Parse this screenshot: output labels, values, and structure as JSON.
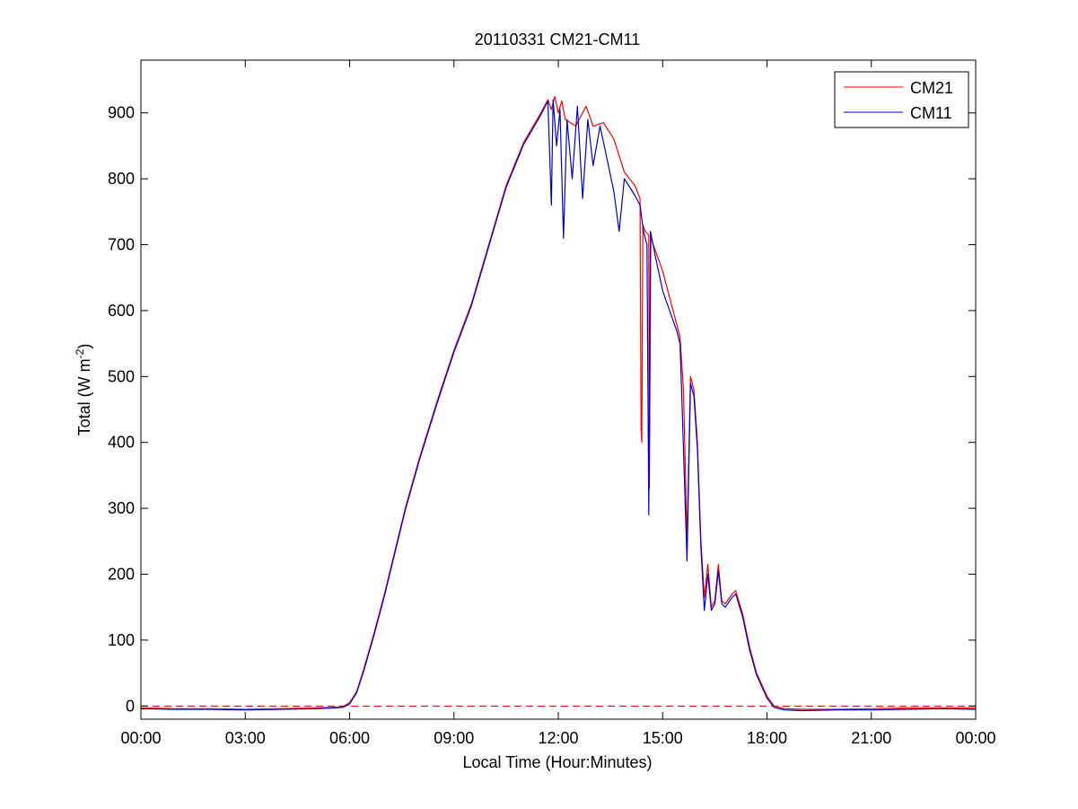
{
  "chart_data": {
    "type": "line",
    "title": "20110331 CM21-CM11",
    "xlabel": "Local Time (Hour:Minutes)",
    "ylabel": {
      "prefix": "Total (W m",
      "sup": "-2",
      "suffix": ")"
    },
    "xlim": [
      0,
      24
    ],
    "ylim": [
      -20,
      980
    ],
    "x_ticks": [
      {
        "value": 0,
        "label": "00:00"
      },
      {
        "value": 3,
        "label": "03:00"
      },
      {
        "value": 6,
        "label": "06:00"
      },
      {
        "value": 9,
        "label": "09:00"
      },
      {
        "value": 12,
        "label": "12:00"
      },
      {
        "value": 15,
        "label": "15:00"
      },
      {
        "value": 18,
        "label": "18:00"
      },
      {
        "value": 21,
        "label": "21:00"
      },
      {
        "value": 24,
        "label": "00:00"
      }
    ],
    "y_ticks": [
      {
        "value": 0,
        "label": "0"
      },
      {
        "value": 100,
        "label": "100"
      },
      {
        "value": 200,
        "label": "200"
      },
      {
        "value": 300,
        "label": "300"
      },
      {
        "value": 400,
        "label": "400"
      },
      {
        "value": 500,
        "label": "500"
      },
      {
        "value": 600,
        "label": "600"
      },
      {
        "value": 700,
        "label": "700"
      },
      {
        "value": 800,
        "label": "800"
      },
      {
        "value": 900,
        "label": "900"
      }
    ],
    "grid": false,
    "legend_position": "top-right",
    "reference_line": {
      "y": 0,
      "color": "#c00000",
      "style": "dashed"
    },
    "series": [
      {
        "name": "CM21",
        "color": "#ff0000",
        "points": [
          [
            0.0,
            -3
          ],
          [
            1.0,
            -4
          ],
          [
            2.0,
            -4
          ],
          [
            3.0,
            -5
          ],
          [
            4.0,
            -4
          ],
          [
            5.0,
            -3
          ],
          [
            5.5,
            -2
          ],
          [
            5.8,
            -1
          ],
          [
            6.0,
            5
          ],
          [
            6.2,
            22
          ],
          [
            6.4,
            55
          ],
          [
            6.7,
            110
          ],
          [
            7.0,
            170
          ],
          [
            7.3,
            235
          ],
          [
            7.6,
            300
          ],
          [
            8.0,
            375
          ],
          [
            8.5,
            460
          ],
          [
            9.0,
            540
          ],
          [
            9.5,
            610
          ],
          [
            10.0,
            700
          ],
          [
            10.5,
            790
          ],
          [
            11.0,
            855
          ],
          [
            11.5,
            900
          ],
          [
            11.7,
            920
          ],
          [
            11.8,
            905
          ],
          [
            11.9,
            925
          ],
          [
            12.0,
            900
          ],
          [
            12.1,
            918
          ],
          [
            12.2,
            890
          ],
          [
            12.5,
            880
          ],
          [
            12.8,
            910
          ],
          [
            13.0,
            880
          ],
          [
            13.3,
            885
          ],
          [
            13.6,
            860
          ],
          [
            13.9,
            810
          ],
          [
            14.2,
            790
          ],
          [
            14.35,
            770
          ],
          [
            14.38,
            420
          ],
          [
            14.4,
            400
          ],
          [
            14.43,
            730
          ],
          [
            14.5,
            720
          ],
          [
            14.6,
            715
          ],
          [
            14.62,
            330
          ],
          [
            14.66,
            710
          ],
          [
            14.8,
            690
          ],
          [
            15.0,
            660
          ],
          [
            15.2,
            620
          ],
          [
            15.4,
            580
          ],
          [
            15.5,
            560
          ],
          [
            15.6,
            480
          ],
          [
            15.7,
            250
          ],
          [
            15.8,
            500
          ],
          [
            15.9,
            480
          ],
          [
            16.0,
            400
          ],
          [
            16.1,
            250
          ],
          [
            16.2,
            165
          ],
          [
            16.3,
            215
          ],
          [
            16.4,
            150
          ],
          [
            16.5,
            160
          ],
          [
            16.6,
            215
          ],
          [
            16.7,
            160
          ],
          [
            16.8,
            155
          ],
          [
            17.0,
            170
          ],
          [
            17.1,
            175
          ],
          [
            17.3,
            140
          ],
          [
            17.5,
            90
          ],
          [
            17.7,
            50
          ],
          [
            18.0,
            15
          ],
          [
            18.2,
            0
          ],
          [
            18.5,
            -4
          ],
          [
            19.0,
            -5
          ],
          [
            20.0,
            -5
          ],
          [
            21.0,
            -4
          ],
          [
            22.0,
            -3
          ],
          [
            23.0,
            -3
          ],
          [
            24.0,
            -3
          ]
        ]
      },
      {
        "name": "CM11",
        "color": "#0000cc",
        "points": [
          [
            0.0,
            -4
          ],
          [
            1.0,
            -5
          ],
          [
            2.0,
            -5
          ],
          [
            3.0,
            -6
          ],
          [
            4.0,
            -5
          ],
          [
            5.0,
            -4
          ],
          [
            5.5,
            -3
          ],
          [
            5.8,
            -2
          ],
          [
            6.0,
            3
          ],
          [
            6.2,
            20
          ],
          [
            6.4,
            52
          ],
          [
            6.7,
            107
          ],
          [
            7.0,
            167
          ],
          [
            7.3,
            232
          ],
          [
            7.6,
            297
          ],
          [
            8.0,
            372
          ],
          [
            8.5,
            457
          ],
          [
            9.0,
            537
          ],
          [
            9.5,
            607
          ],
          [
            10.0,
            697
          ],
          [
            10.5,
            787
          ],
          [
            11.0,
            852
          ],
          [
            11.5,
            897
          ],
          [
            11.7,
            918
          ],
          [
            11.8,
            760
          ],
          [
            11.85,
            920
          ],
          [
            11.95,
            850
          ],
          [
            12.05,
            905
          ],
          [
            12.15,
            710
          ],
          [
            12.25,
            890
          ],
          [
            12.4,
            800
          ],
          [
            12.55,
            910
          ],
          [
            12.7,
            770
          ],
          [
            12.85,
            890
          ],
          [
            13.0,
            820
          ],
          [
            13.2,
            880
          ],
          [
            13.4,
            830
          ],
          [
            13.6,
            780
          ],
          [
            13.75,
            720
          ],
          [
            13.9,
            800
          ],
          [
            14.2,
            775
          ],
          [
            14.35,
            760
          ],
          [
            14.45,
            720
          ],
          [
            14.55,
            700
          ],
          [
            14.6,
            290
          ],
          [
            14.65,
            720
          ],
          [
            14.8,
            680
          ],
          [
            15.0,
            630
          ],
          [
            15.2,
            600
          ],
          [
            15.4,
            570
          ],
          [
            15.5,
            550
          ],
          [
            15.55,
            470
          ],
          [
            15.7,
            220
          ],
          [
            15.8,
            490
          ],
          [
            15.9,
            470
          ],
          [
            16.0,
            390
          ],
          [
            16.1,
            240
          ],
          [
            16.2,
            145
          ],
          [
            16.3,
            200
          ],
          [
            16.4,
            145
          ],
          [
            16.5,
            155
          ],
          [
            16.6,
            205
          ],
          [
            16.7,
            155
          ],
          [
            16.8,
            150
          ],
          [
            17.0,
            165
          ],
          [
            17.1,
            170
          ],
          [
            17.3,
            135
          ],
          [
            17.5,
            85
          ],
          [
            17.7,
            47
          ],
          [
            18.0,
            12
          ],
          [
            18.2,
            -2
          ],
          [
            18.5,
            -6
          ],
          [
            19.0,
            -7
          ],
          [
            20.0,
            -6
          ],
          [
            21.0,
            -6
          ],
          [
            22.0,
            -5
          ],
          [
            23.0,
            -4
          ],
          [
            24.0,
            -5
          ]
        ]
      }
    ]
  }
}
